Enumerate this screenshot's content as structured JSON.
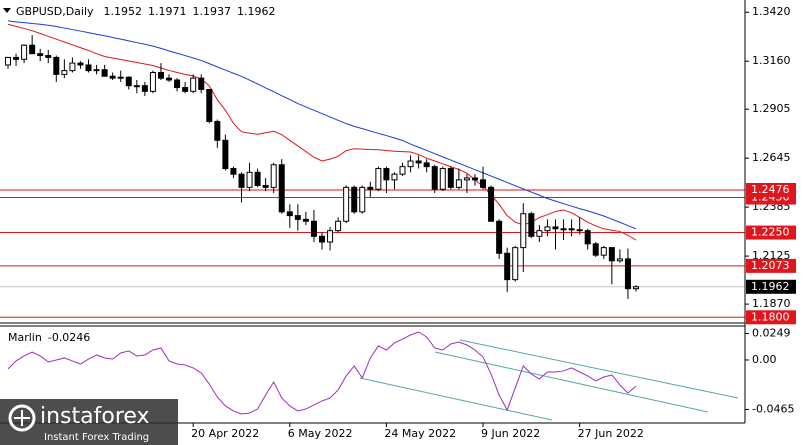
{
  "chart_data": [
    {
      "type": "candlestick",
      "title": "GBPUSD,Daily",
      "categories": [
        null,
        null,
        null,
        null,
        null,
        null,
        null,
        null,
        null,
        null,
        null,
        null,
        null,
        null,
        null,
        null,
        null,
        null,
        null,
        null,
        null,
        null,
        null,
        "20 Apr 2022",
        null,
        null,
        null,
        null,
        null,
        null,
        null,
        null,
        null,
        null,
        null,
        "6 May 2022",
        null,
        null,
        null,
        null,
        null,
        null,
        null,
        null,
        null,
        null,
        null,
        "24 May 2022",
        null,
        null,
        null,
        null,
        null,
        null,
        null,
        null,
        null,
        null,
        null,
        "9 Jun 2022",
        null,
        null,
        null,
        null,
        null,
        null,
        null,
        null,
        null,
        null,
        null,
        "27 Jun 2022",
        null,
        null,
        null,
        null,
        null,
        null,
        null
      ],
      "open": [
        1.314,
        1.318,
        1.317,
        1.3245,
        1.32,
        1.319,
        1.318,
        1.309,
        1.311,
        1.315,
        1.314,
        1.311,
        1.3115,
        1.308,
        1.307,
        1.3075,
        1.303,
        1.303,
        1.3,
        1.31,
        1.307,
        1.306,
        1.302,
        1.3,
        1.307,
        1.301,
        1.284,
        1.274,
        1.259,
        1.256,
        1.249,
        1.257,
        1.25,
        1.249,
        1.261,
        1.236,
        1.234,
        1.232,
        1.231,
        1.223,
        1.22,
        1.226,
        1.231,
        1.249,
        1.236,
        1.249,
        1.248,
        1.259,
        1.253,
        1.256,
        1.26,
        1.263,
        1.262,
        1.26,
        1.248,
        1.259,
        1.249,
        1.253,
        1.254,
        1.253,
        1.249,
        1.231,
        1.214,
        1.2,
        1.217,
        1.235,
        1.223,
        1.226,
        1.228,
        1.227,
        1.227,
        1.2265,
        1.226,
        1.219,
        1.213,
        1.217,
        1.21,
        1.211,
        1.1952
      ],
      "high": [
        1.3183,
        1.32,
        1.325,
        1.3298,
        1.3225,
        1.322,
        1.319,
        1.317,
        1.318,
        1.316,
        1.317,
        1.314,
        1.314,
        1.31,
        1.311,
        1.308,
        1.306,
        1.305,
        1.311,
        1.315,
        1.309,
        1.307,
        1.305,
        1.309,
        1.309,
        1.301,
        1.285,
        1.277,
        1.26,
        1.257,
        1.262,
        1.259,
        1.254,
        1.262,
        1.264,
        1.24,
        1.24,
        1.236,
        1.237,
        1.225,
        1.228,
        1.233,
        1.25,
        1.25,
        1.25,
        1.252,
        1.26,
        1.26,
        1.257,
        1.262,
        1.266,
        1.266,
        1.264,
        1.261,
        1.26,
        1.26,
        1.259,
        1.256,
        1.256,
        1.26,
        1.25,
        1.232,
        1.217,
        1.218,
        1.2406,
        1.236,
        1.229,
        1.232,
        1.232,
        1.232,
        1.232,
        1.233,
        1.227,
        1.22,
        1.218,
        1.217,
        1.216,
        1.2165,
        1.1971
      ],
      "low": [
        1.312,
        1.3135,
        1.315,
        1.32,
        1.316,
        1.315,
        1.305,
        1.307,
        1.31,
        1.312,
        1.31,
        1.309,
        1.308,
        1.306,
        1.305,
        1.301,
        1.299,
        1.2975,
        1.299,
        1.306,
        1.305,
        1.3,
        1.299,
        1.299,
        1.299,
        1.283,
        1.27,
        1.258,
        1.254,
        1.241,
        1.247,
        1.249,
        1.247,
        1.246,
        1.235,
        1.2275,
        1.226,
        1.229,
        1.22,
        1.216,
        1.2155,
        1.225,
        1.23,
        1.235,
        1.235,
        1.244,
        1.247,
        1.246,
        1.248,
        1.255,
        1.257,
        1.259,
        1.257,
        1.246,
        1.247,
        1.248,
        1.248,
        1.246,
        1.25,
        1.248,
        1.231,
        1.211,
        1.1934,
        1.199,
        1.204,
        1.222,
        1.22,
        1.223,
        1.216,
        1.221,
        1.223,
        1.224,
        1.216,
        1.212,
        1.211,
        1.1975,
        1.209,
        1.1898,
        1.1937
      ],
      "close": [
        1.318,
        1.317,
        1.3245,
        1.32,
        1.319,
        1.318,
        1.309,
        1.311,
        1.315,
        1.314,
        1.311,
        1.3115,
        1.308,
        1.307,
        1.3075,
        1.303,
        1.303,
        1.3,
        1.31,
        1.307,
        1.306,
        1.302,
        1.3,
        1.307,
        1.301,
        1.284,
        1.274,
        1.259,
        1.256,
        1.249,
        1.257,
        1.25,
        1.249,
        1.261,
        1.236,
        1.234,
        1.232,
        1.231,
        1.223,
        1.22,
        1.226,
        1.231,
        1.249,
        1.236,
        1.249,
        1.248,
        1.259,
        1.253,
        1.256,
        1.26,
        1.263,
        1.262,
        1.26,
        1.248,
        1.259,
        1.249,
        1.253,
        1.254,
        1.253,
        1.249,
        1.231,
        1.214,
        1.2,
        1.217,
        1.235,
        1.223,
        1.226,
        1.228,
        1.227,
        1.227,
        1.2265,
        1.226,
        1.219,
        1.213,
        1.217,
        1.21,
        1.211,
        1.1952,
        1.1962
      ],
      "up_color": "#ffffff",
      "down_color": "#000000",
      "overlays": [
        {
          "color": "#e0161e",
          "values": [
            1.3356,
            1.3345,
            1.3334,
            1.3322,
            1.3307,
            1.3292,
            1.3277,
            1.3262,
            1.3247,
            1.3232,
            1.3217,
            1.32,
            1.3185,
            1.3177,
            1.3169,
            1.3161,
            1.3153,
            1.3145,
            1.3137,
            1.3124,
            1.3111,
            1.31,
            1.309,
            1.3082,
            1.3065,
            1.303,
            1.2955,
            1.29,
            1.283,
            1.2785,
            1.2778,
            1.2772,
            1.278,
            1.2788,
            1.277,
            1.274,
            1.271,
            1.268,
            1.265,
            1.263,
            1.264,
            1.2655,
            1.2685,
            1.2695,
            1.2693,
            1.2691,
            1.269,
            1.2686,
            1.2682,
            1.268,
            1.2678,
            1.2665,
            1.2645,
            1.263,
            1.2615,
            1.26,
            1.2585,
            1.2565,
            1.253,
            1.2495,
            1.245,
            1.24,
            1.234,
            1.2305,
            1.229,
            1.2305,
            1.233,
            1.2345,
            1.2362,
            1.237,
            1.2355,
            1.233,
            1.2305,
            1.2285,
            1.227,
            1.2262,
            1.2256,
            1.2235,
            1.221
          ]
        },
        {
          "color": "#1e3ad6",
          "values": [
            1.3374,
            1.3369,
            1.3365,
            1.336,
            1.3356,
            1.3351,
            1.3344,
            1.3336,
            1.3328,
            1.332,
            1.3312,
            1.3303,
            1.3295,
            1.3286,
            1.3277,
            1.3268,
            1.3259,
            1.325,
            1.324,
            1.3228,
            1.3215,
            1.3202,
            1.319,
            1.3177,
            1.3164,
            1.3147,
            1.313,
            1.3113,
            1.3096,
            1.3079,
            1.306,
            1.3039,
            1.3018,
            1.2998,
            1.2977,
            1.2956,
            1.2935,
            1.2917,
            1.2899,
            1.2882,
            1.2864,
            1.2846,
            1.2829,
            1.2814,
            1.2802,
            1.2789,
            1.2777,
            1.2765,
            1.2752,
            1.2739,
            1.272,
            1.2703,
            1.2686,
            1.2669,
            1.2652,
            1.2635,
            1.2618,
            1.2601,
            1.2584,
            1.2567,
            1.255,
            1.2533,
            1.2516,
            1.2499,
            1.2482,
            1.2465,
            1.2448,
            1.2431,
            1.2417,
            1.2404,
            1.239,
            1.2377,
            1.2365,
            1.2352,
            1.2338,
            1.2321,
            1.2304,
            1.2287,
            1.227
          ]
        }
      ],
      "levels": [
        1.2436,
        1.2476,
        {
          "value": 1.225,
          "label": "1.2250"
        },
        1.2073,
        {
          "value": 1.18,
          "label": "1.1800"
        }
      ],
      "level_color": "#e0161e",
      "ylim": [
        1.1775,
        1.3485
      ],
      "yticks": [
        {
          "value": 1.342,
          "label": "1.3420"
        },
        {
          "value": 1.316,
          "label": "1.3160"
        },
        1.2905,
        1.2645,
        1.2385,
        1.2125,
        {
          "value": 1.187,
          "label": "1.1870"
        }
      ]
    },
    {
      "type": "line",
      "title": "Marlin",
      "color": "#9b2fc4",
      "values": [
        -0.0085,
        -0.0009,
        0.0038,
        0.0075,
        0.0038,
        -0.0019,
        0.0,
        0.0019,
        -0.0009,
        -0.0038,
        0.0009,
        0.0047,
        0.0019,
        0.0009,
        0.0066,
        0.0085,
        0.0038,
        0.0047,
        0.0094,
        0.0113,
        -0.0009,
        -0.0038,
        -0.0047,
        -0.0075,
        -0.0122,
        -0.0226,
        -0.0348,
        -0.0432,
        -0.0479,
        -0.0508,
        -0.0498,
        -0.0461,
        -0.0329,
        -0.0207,
        -0.0357,
        -0.0432,
        -0.0479,
        -0.0461,
        -0.0423,
        -0.0385,
        -0.0357,
        -0.0282,
        -0.015,
        -0.0056,
        -0.0169,
        0.0019,
        0.0132,
        0.0094,
        0.016,
        0.0197,
        0.0235,
        0.0263,
        0.0216,
        0.0113,
        0.0094,
        0.015,
        0.0169,
        0.0141,
        0.0094,
        0.0028,
        -0.0132,
        -0.0329,
        -0.047,
        -0.0263,
        -0.0056,
        -0.0132,
        -0.0179,
        -0.0113,
        -0.0113,
        -0.0103,
        -0.0075,
        -0.0113,
        -0.015,
        -0.0197,
        -0.016,
        -0.0141,
        -0.0235,
        -0.031,
        -0.0246
      ],
      "ylim": [
        -0.0583,
        0.031
      ],
      "yticks": [
        0.0249,
        {
          "value": 0,
          "label": "0.00"
        },
        -0.0465
      ]
    }
  ],
  "watermark": {
    "brand": "instaforex",
    "tagline": "Instant Forex Trading"
  }
}
